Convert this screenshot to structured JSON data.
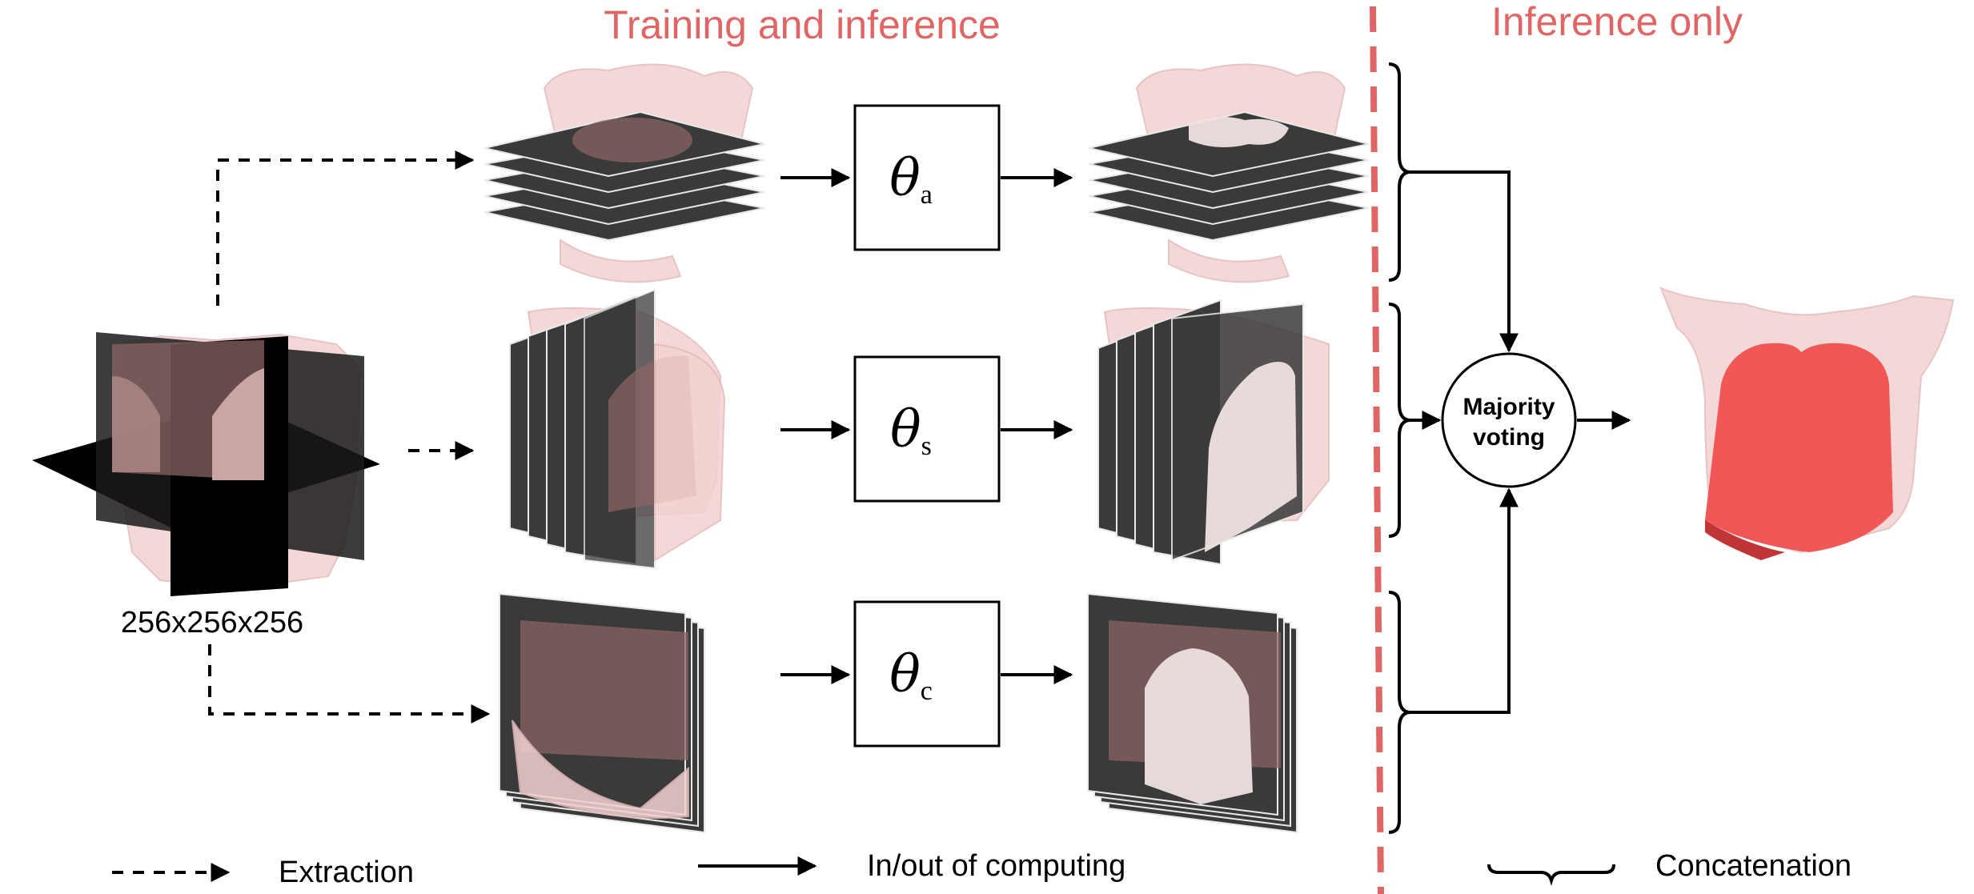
{
  "sections": {
    "training": "Training and inference",
    "inference": "Inference only"
  },
  "input": {
    "dimensions": "256x256x256"
  },
  "models": [
    {
      "symbol": "θ",
      "subscript": "a"
    },
    {
      "symbol": "θ",
      "subscript": "s"
    },
    {
      "symbol": "θ",
      "subscript": "c"
    }
  ],
  "voting": {
    "line1": "Majority",
    "line2": "voting"
  },
  "legend": {
    "extraction": "Extraction",
    "computing": "In/out of computing",
    "concatenation": "Concatenation"
  },
  "colors": {
    "accent": "#e06666",
    "slice": "#3a3a3a",
    "body": "#f3d2d2",
    "lung_output": "#f05050"
  }
}
